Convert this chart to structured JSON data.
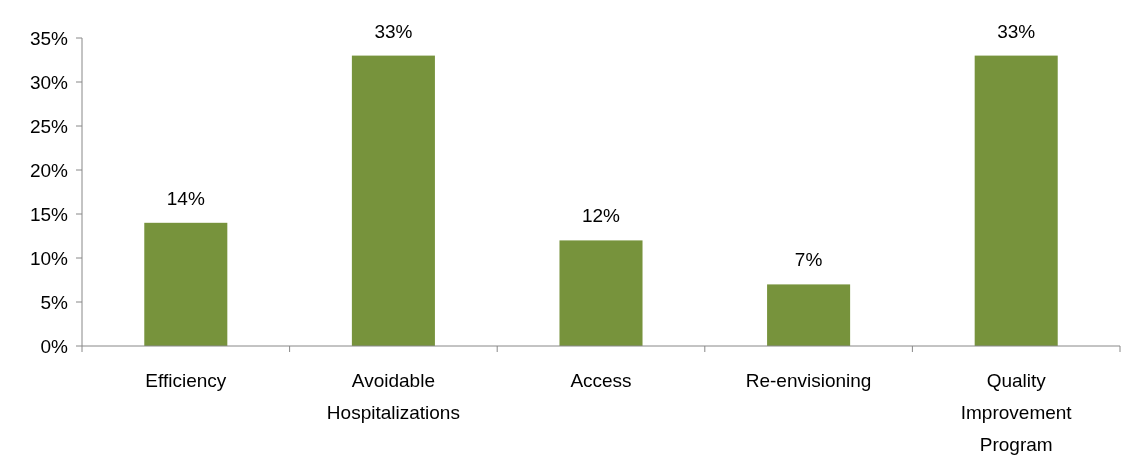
{
  "chart_data": {
    "type": "bar",
    "categories": [
      "Efficiency",
      "Avoidable Hospitalizations",
      "Access",
      "Re-envisioning",
      "Quality Improvement Program"
    ],
    "values": [
      14,
      33,
      12,
      7,
      33
    ],
    "value_labels": [
      "14%",
      "33%",
      "12%",
      "7%",
      "33%"
    ],
    "color": "#77933c",
    "ylim": [
      0,
      35
    ],
    "yticks": [
      {
        "value": 0,
        "label": "0%"
      },
      {
        "value": 5,
        "label": "5%"
      },
      {
        "value": 10,
        "label": "10%"
      },
      {
        "value": 15,
        "label": "15%"
      },
      {
        "value": 20,
        "label": "20%"
      },
      {
        "value": 25,
        "label": "25%"
      },
      {
        "value": 30,
        "label": "30%"
      },
      {
        "value": 35,
        "label": "35%"
      }
    ],
    "grid": false
  }
}
